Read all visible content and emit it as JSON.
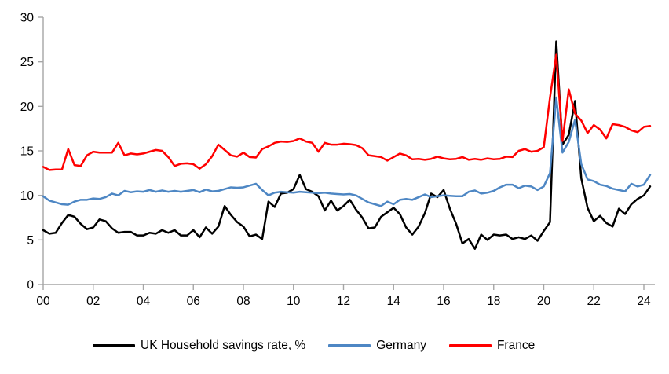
{
  "chart_data": {
    "type": "line",
    "title": "",
    "xlabel": "",
    "ylabel": "",
    "x_unit": "year, quarterly observations",
    "x_start_year": 2000,
    "x_step_years": 0.25,
    "x_tick_years": [
      2000,
      2002,
      2004,
      2006,
      2008,
      2010,
      2012,
      2014,
      2016,
      2018,
      2020,
      2022,
      2024
    ],
    "x_tick_labels": [
      "00",
      "02",
      "04",
      "06",
      "08",
      "10",
      "12",
      "14",
      "16",
      "18",
      "20",
      "22",
      "24"
    ],
    "ylim": [
      0,
      30
    ],
    "y_ticks": [
      0,
      5,
      10,
      15,
      20,
      25,
      30
    ],
    "y_tick_labels": [
      "0",
      "5",
      "10",
      "15",
      "20",
      "25",
      "30"
    ],
    "grid": false,
    "legend_position": "bottom",
    "axis_color": "#A6A6A6",
    "label_color": "#000000",
    "background_color": "#FFFFFF",
    "series": [
      {
        "name": "UK Household savings rate, %",
        "color": "#000000",
        "values": [
          6.1,
          5.7,
          5.8,
          6.9,
          7.8,
          7.6,
          6.8,
          6.2,
          6.4,
          7.3,
          7.1,
          6.3,
          5.8,
          5.9,
          5.9,
          5.5,
          5.5,
          5.8,
          5.7,
          6.1,
          5.8,
          6.1,
          5.5,
          5.5,
          6.1,
          5.3,
          6.4,
          5.7,
          6.5,
          8.8,
          7.8,
          7.0,
          6.5,
          5.4,
          5.6,
          5.1,
          9.3,
          8.7,
          10.2,
          10.3,
          10.7,
          12.3,
          10.7,
          10.4,
          9.9,
          8.3,
          9.4,
          8.3,
          8.8,
          9.5,
          8.4,
          7.5,
          6.3,
          6.4,
          7.6,
          8.1,
          8.6,
          7.9,
          6.4,
          5.6,
          6.5,
          8.0,
          10.2,
          9.8,
          10.6,
          8.5,
          6.8,
          4.6,
          5.1,
          4.0,
          5.6,
          5.0,
          5.6,
          5.5,
          5.6,
          5.1,
          5.3,
          5.1,
          5.5,
          4.9,
          6.0,
          7.0,
          27.3,
          15.7,
          16.8,
          20.6,
          11.9,
          8.6,
          7.1,
          7.7,
          6.9,
          6.5,
          8.5,
          7.9,
          9.0,
          9.6,
          10.0,
          11.0
        ]
      },
      {
        "name": "Germany",
        "color": "#4E87C4",
        "values": [
          9.9,
          9.4,
          9.2,
          9.0,
          8.95,
          9.3,
          9.5,
          9.5,
          9.65,
          9.6,
          9.8,
          10.2,
          10.0,
          10.5,
          10.35,
          10.45,
          10.4,
          10.6,
          10.4,
          10.55,
          10.4,
          10.5,
          10.4,
          10.5,
          10.6,
          10.35,
          10.65,
          10.45,
          10.5,
          10.7,
          10.9,
          10.85,
          10.9,
          11.1,
          11.3,
          10.6,
          10.0,
          10.3,
          10.4,
          10.35,
          10.3,
          10.4,
          10.35,
          10.3,
          10.25,
          10.3,
          10.2,
          10.15,
          10.1,
          10.15,
          10.0,
          9.6,
          9.2,
          9.0,
          8.8,
          9.3,
          9.0,
          9.5,
          9.6,
          9.5,
          9.8,
          10.1,
          9.8,
          9.9,
          10.0,
          9.95,
          9.9,
          9.9,
          10.4,
          10.55,
          10.2,
          10.3,
          10.5,
          10.9,
          11.2,
          11.2,
          10.8,
          11.1,
          11.0,
          10.6,
          11.0,
          12.5,
          21.0,
          14.8,
          16.0,
          18.5,
          13.5,
          11.8,
          11.6,
          11.2,
          11.05,
          10.75,
          10.6,
          10.45,
          11.3,
          11.0,
          11.2,
          12.3
        ]
      },
      {
        "name": "France",
        "color": "#FF0000",
        "values": [
          13.2,
          12.85,
          12.9,
          12.9,
          15.2,
          13.4,
          13.3,
          14.5,
          14.9,
          14.8,
          14.8,
          14.8,
          15.9,
          14.5,
          14.7,
          14.6,
          14.7,
          14.9,
          15.1,
          15.0,
          14.3,
          13.3,
          13.55,
          13.6,
          13.5,
          13.0,
          13.5,
          14.4,
          15.7,
          15.1,
          14.5,
          14.35,
          14.8,
          14.3,
          14.25,
          15.2,
          15.5,
          15.9,
          16.05,
          16.0,
          16.1,
          16.4,
          16.05,
          15.9,
          14.9,
          15.9,
          15.7,
          15.7,
          15.8,
          15.75,
          15.65,
          15.3,
          14.5,
          14.4,
          14.3,
          13.9,
          14.3,
          14.7,
          14.5,
          14.05,
          14.1,
          14.0,
          14.1,
          14.35,
          14.15,
          14.05,
          14.1,
          14.3,
          14.0,
          14.1,
          14.0,
          14.15,
          14.05,
          14.1,
          14.35,
          14.3,
          15.0,
          15.2,
          14.9,
          15.0,
          15.4,
          21.0,
          25.8,
          16.1,
          21.9,
          19.2,
          18.4,
          17.0,
          17.9,
          17.4,
          16.4,
          18.0,
          17.9,
          17.7,
          17.3,
          17.1,
          17.7,
          17.8
        ]
      }
    ]
  },
  "legend": {
    "uk_label": "UK Household savings rate, %",
    "germany_label": "Germany",
    "france_label": "France"
  }
}
